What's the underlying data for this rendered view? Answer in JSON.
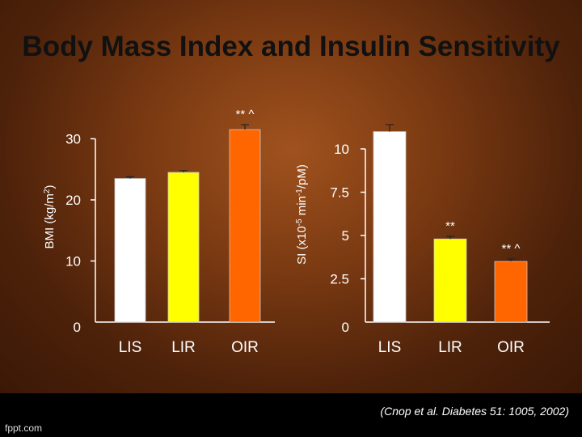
{
  "slide": {
    "title": "Body Mass Index and Insulin Sensitivity",
    "citation": "(Cnop et al. Diabetes 51: 1005, 2002)",
    "brand": "fppt.com"
  },
  "colors": {
    "axis": "#ffffff",
    "text": "#ffffff",
    "title": "#111111"
  },
  "chart_data": [
    {
      "type": "bar",
      "title": "",
      "categories": [
        "LIS",
        "LIR",
        "OIR"
      ],
      "values": [
        23.5,
        24.5,
        31.5
      ],
      "errors": [
        0.3,
        0.3,
        0.8
      ],
      "colors": [
        "#ffffff",
        "#ffff00",
        "#ff6600"
      ],
      "annotations": [
        "",
        "",
        "** ^"
      ],
      "ylabel": "BMI (kg/m2)",
      "xlabel": "",
      "ylim": [
        0,
        30
      ],
      "yticks": [
        "0",
        "10",
        "20",
        "30"
      ],
      "grid": false
    },
    {
      "type": "bar",
      "title": "",
      "categories": [
        "LIS",
        "LIR",
        "OIR"
      ],
      "values": [
        11,
        4.8,
        3.5
      ],
      "errors": [
        0.4,
        0.15,
        0.15
      ],
      "colors": [
        "#ffffff",
        "#ffff00",
        "#ff6600"
      ],
      "annotations": [
        "",
        "**",
        "** ^"
      ],
      "ylabel": "SI (x10-5 min-1/pM)",
      "xlabel": "",
      "ylim": [
        0,
        10
      ],
      "yticks": [
        "0",
        "2.5",
        "5",
        "7.5",
        "10"
      ],
      "grid": false
    }
  ]
}
